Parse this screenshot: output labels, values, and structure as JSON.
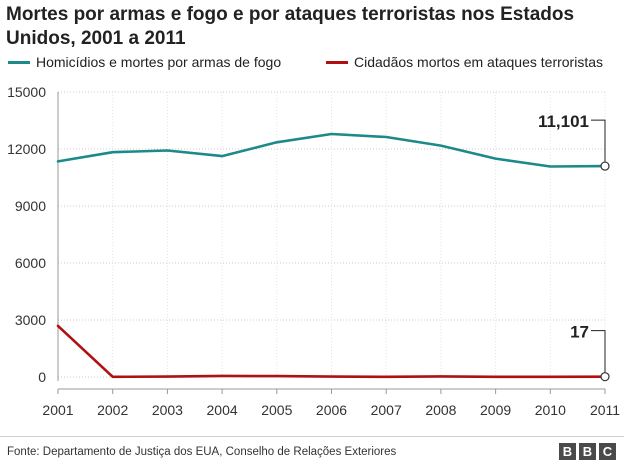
{
  "title": "Mortes por armas e fogo e por ataques terroristas nos Estados Unidos, 2001 a 2011",
  "legend": {
    "series1": "Homicídios e mortes por armas de fogo",
    "series2": "Cidadãos mortos em ataques terroristas"
  },
  "colors": {
    "series1": "#1c8a8a",
    "series2": "#b01010",
    "axis": "#999999",
    "grid": "#cccccc"
  },
  "chart_data": {
    "type": "line",
    "title": "Mortes por armas e fogo e por ataques terroristas nos Estados Unidos, 2001 a 2011",
    "x": [
      2001,
      2002,
      2003,
      2004,
      2005,
      2006,
      2007,
      2008,
      2009,
      2010,
      2011
    ],
    "series": [
      {
        "name": "Homicídios e mortes por armas de fogo",
        "values": [
          11348,
          11829,
          11920,
          11624,
          12352,
          12791,
          12632,
          12179,
          11493,
          11078,
          11101
        ]
      },
      {
        "name": "Cidadãos mortos em ataques terroristas",
        "values": [
          2689,
          10,
          20,
          60,
          50,
          20,
          10,
          30,
          10,
          10,
          17
        ]
      }
    ],
    "xlim": [
      2001,
      2011
    ],
    "ylim": [
      0,
      15000
    ],
    "yticks": [
      0,
      3000,
      6000,
      9000,
      12000,
      15000
    ],
    "ytick_labels": [
      "0",
      "3000",
      "6000",
      "9000",
      "12000",
      "15000"
    ],
    "xtick_labels": [
      "2001",
      "2002",
      "2003",
      "2004",
      "2005",
      "2006",
      "2007",
      "2008",
      "2009",
      "2010",
      "2011"
    ],
    "grid": true,
    "legend_position": "top",
    "annotations": [
      {
        "series": 0,
        "x": 2011,
        "label": "11,101"
      },
      {
        "series": 1,
        "x": 2011,
        "label": "17"
      }
    ]
  },
  "footer": {
    "source": "Fonte: Departamento de Justiça dos EUA, Conselho de Relações Exteriores",
    "brand": [
      "B",
      "B",
      "C"
    ]
  }
}
